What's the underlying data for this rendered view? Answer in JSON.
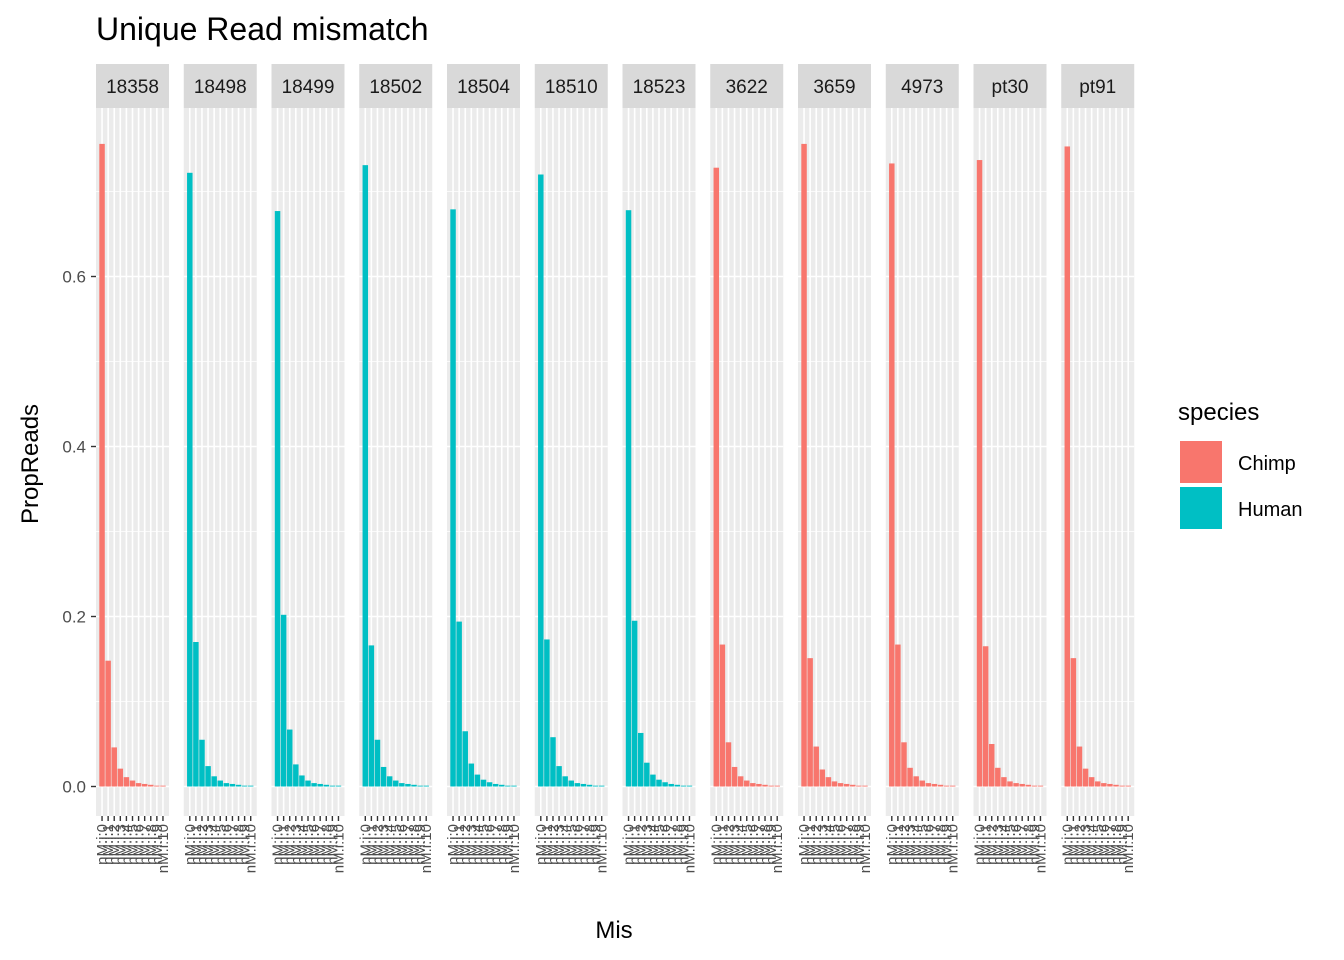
{
  "chart_data": {
    "type": "bar",
    "title": "Unique Read mismatch",
    "xlabel": "Mis",
    "ylabel": "PropReads",
    "ylim": [
      0,
      0.76
    ],
    "yticks": [
      0.0,
      0.2,
      0.4,
      0.6
    ],
    "ytick_labels": [
      "0.0",
      "0.2",
      "0.4",
      "0.6"
    ],
    "x_tick_label_texts": [
      "nM:i:0",
      "nM:i:1",
      "nM:i:2",
      "nM:i:3",
      "nM:i:4",
      "nM:i:5",
      "nM:i:6",
      "nM:i:7",
      "nM:i:8",
      "nM:i:9",
      "nM:i:10"
    ],
    "legend": {
      "title": "species",
      "position": "right",
      "entries": [
        {
          "label": "Chimp",
          "color": "#F8766D"
        },
        {
          "label": "Human",
          "color": "#00BFC4"
        }
      ]
    },
    "grid": true,
    "panel_background": "#EBEBEB",
    "strip_background": "#D9D9D9",
    "n_categories": 11,
    "facets": [
      {
        "label": "18358",
        "species": "Chimp",
        "values": [
          0.756,
          0.148,
          0.046,
          0.021,
          0.011,
          0.007,
          0.004,
          0.003,
          0.002,
          0.001,
          0.001
        ]
      },
      {
        "label": "18498",
        "species": "Human",
        "values": [
          0.722,
          0.17,
          0.055,
          0.024,
          0.012,
          0.007,
          0.004,
          0.003,
          0.002,
          0.001,
          0.001
        ]
      },
      {
        "label": "18499",
        "species": "Human",
        "values": [
          0.677,
          0.202,
          0.067,
          0.026,
          0.013,
          0.007,
          0.004,
          0.003,
          0.002,
          0.001,
          0.001
        ]
      },
      {
        "label": "18502",
        "species": "Human",
        "values": [
          0.731,
          0.166,
          0.055,
          0.023,
          0.012,
          0.007,
          0.004,
          0.003,
          0.002,
          0.001,
          0.001
        ]
      },
      {
        "label": "18504",
        "species": "Human",
        "values": [
          0.679,
          0.194,
          0.065,
          0.027,
          0.014,
          0.008,
          0.005,
          0.003,
          0.002,
          0.001,
          0.001
        ]
      },
      {
        "label": "18510",
        "species": "Human",
        "values": [
          0.72,
          0.173,
          0.058,
          0.024,
          0.012,
          0.007,
          0.004,
          0.003,
          0.002,
          0.001,
          0.001
        ]
      },
      {
        "label": "18523",
        "species": "Human",
        "values": [
          0.678,
          0.195,
          0.063,
          0.028,
          0.014,
          0.008,
          0.005,
          0.003,
          0.002,
          0.001,
          0.001
        ]
      },
      {
        "label": "3622",
        "species": "Chimp",
        "values": [
          0.728,
          0.167,
          0.052,
          0.023,
          0.012,
          0.007,
          0.004,
          0.003,
          0.002,
          0.001,
          0.001
        ]
      },
      {
        "label": "3659",
        "species": "Chimp",
        "values": [
          0.756,
          0.151,
          0.047,
          0.02,
          0.011,
          0.006,
          0.004,
          0.003,
          0.002,
          0.001,
          0.001
        ]
      },
      {
        "label": "4973",
        "species": "Chimp",
        "values": [
          0.733,
          0.167,
          0.052,
          0.022,
          0.012,
          0.007,
          0.004,
          0.003,
          0.002,
          0.001,
          0.001
        ]
      },
      {
        "label": "pt30",
        "species": "Chimp",
        "values": [
          0.737,
          0.165,
          0.05,
          0.022,
          0.011,
          0.006,
          0.004,
          0.003,
          0.002,
          0.001,
          0.001
        ]
      },
      {
        "label": "pt91",
        "species": "Chimp",
        "values": [
          0.753,
          0.151,
          0.047,
          0.021,
          0.011,
          0.006,
          0.004,
          0.003,
          0.002,
          0.001,
          0.001
        ]
      }
    ]
  }
}
